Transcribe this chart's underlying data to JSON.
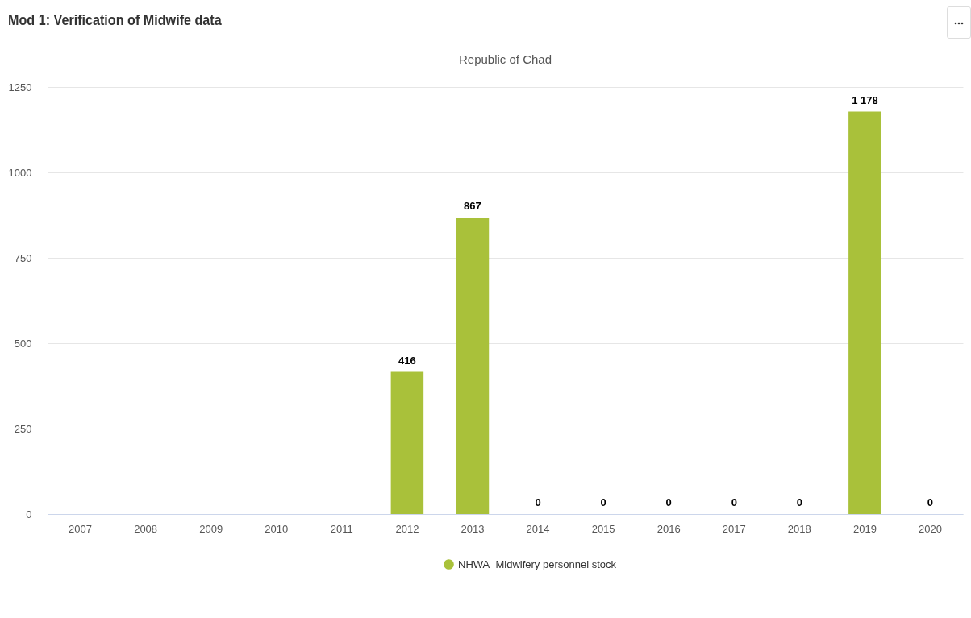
{
  "chart_data": {
    "type": "bar",
    "title": "Mod 1: Verification of Midwife data",
    "subtitle": "Republic of Chad",
    "categories": [
      "2007",
      "2008",
      "2009",
      "2010",
      "2011",
      "2012",
      "2013",
      "2014",
      "2015",
      "2016",
      "2017",
      "2018",
      "2019",
      "2020"
    ],
    "series": [
      {
        "name": "NHWA_Midwifery personnel stock",
        "color": "#a9c13a",
        "values": [
          null,
          null,
          null,
          null,
          null,
          416,
          867,
          0,
          0,
          0,
          0,
          0,
          1178,
          0
        ]
      }
    ],
    "value_labels": [
      null,
      null,
      null,
      null,
      null,
      "416",
      "867",
      "0",
      "0",
      "0",
      "0",
      "0",
      "1 178",
      "0"
    ],
    "ylim": [
      0,
      1250
    ],
    "yticks": [
      0,
      250,
      500,
      750,
      1000,
      1250
    ],
    "grid": "y",
    "legend": "bottom"
  }
}
